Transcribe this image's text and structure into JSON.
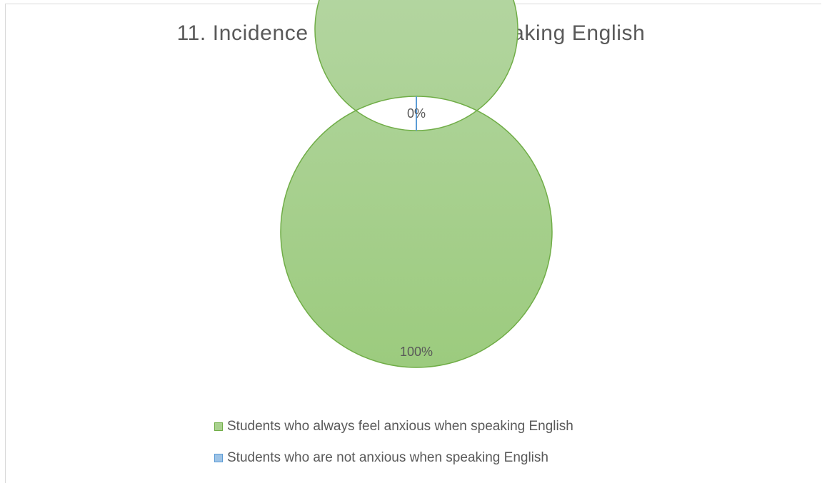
{
  "chart_data": {
    "type": "pie",
    "variant": "doughnut",
    "title": "11. Incidence of anxiety when speaking English",
    "categories": [
      "Students who always feel anxious when speaking English",
      "Students who are not anxious when speaking English"
    ],
    "values": [
      100,
      0
    ],
    "data_labels": [
      "100%",
      "0%"
    ],
    "colors": [
      "#a9d18e",
      "#9dc3e6"
    ],
    "border_colors": [
      "#70ad47",
      "#5b9bd5"
    ],
    "legend_position": "bottom"
  }
}
